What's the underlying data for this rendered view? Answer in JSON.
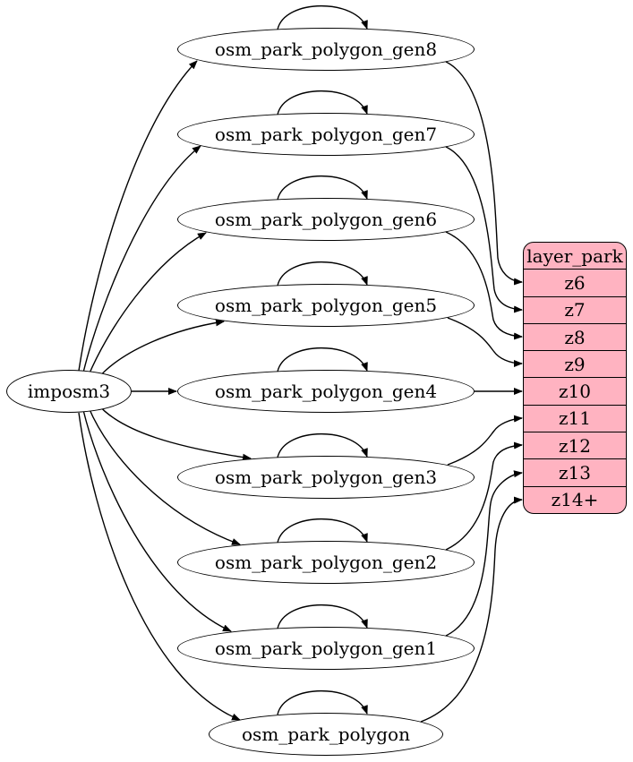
{
  "diagram": {
    "background_color": "#ffffff",
    "edge_color": "#000000",
    "node_fill_color": "#ffffff",
    "node_stroke_color": "#000000",
    "source": {
      "id": "imposm3",
      "label": "imposm3"
    },
    "generalized_tables": [
      {
        "id": "osm_park_polygon_gen8",
        "label": "osm_park_polygon_gen8",
        "target_row": "z6"
      },
      {
        "id": "osm_park_polygon_gen7",
        "label": "osm_park_polygon_gen7",
        "target_row": "z7"
      },
      {
        "id": "osm_park_polygon_gen6",
        "label": "osm_park_polygon_gen6",
        "target_row": "z8"
      },
      {
        "id": "osm_park_polygon_gen5",
        "label": "osm_park_polygon_gen5",
        "target_row": "z9"
      },
      {
        "id": "osm_park_polygon_gen4",
        "label": "osm_park_polygon_gen4",
        "target_row": "z10"
      },
      {
        "id": "osm_park_polygon_gen3",
        "label": "osm_park_polygon_gen3",
        "target_row": "z11"
      },
      {
        "id": "osm_park_polygon_gen2",
        "label": "osm_park_polygon_gen2",
        "target_row": "z12"
      },
      {
        "id": "osm_park_polygon_gen1",
        "label": "osm_park_polygon_gen1",
        "target_row": "z13"
      },
      {
        "id": "osm_park_polygon",
        "label": "osm_park_polygon",
        "target_row": "z14+"
      }
    ],
    "layer_table": {
      "title": "layer_park",
      "rows": [
        "z6",
        "z7",
        "z8",
        "z9",
        "z10",
        "z11",
        "z12",
        "z13",
        "z14+"
      ],
      "fill_color": "#ffb3c1",
      "border_color": "#000000"
    },
    "edges": {
      "from_source_to": [
        "osm_park_polygon_gen8",
        "osm_park_polygon_gen7",
        "osm_park_polygon_gen6",
        "osm_park_polygon_gen5",
        "osm_park_polygon_gen4",
        "osm_park_polygon_gen3",
        "osm_park_polygon_gen2",
        "osm_park_polygon_gen1",
        "osm_park_polygon"
      ],
      "self_loops_on": [
        "osm_park_polygon_gen8",
        "osm_park_polygon_gen7",
        "osm_park_polygon_gen6",
        "osm_park_polygon_gen5",
        "osm_park_polygon_gen4",
        "osm_park_polygon_gen3",
        "osm_park_polygon_gen2",
        "osm_park_polygon_gen1",
        "osm_park_polygon"
      ],
      "table_to_zoom_row": [
        {
          "from": "osm_park_polygon_gen8",
          "to": "z6"
        },
        {
          "from": "osm_park_polygon_gen7",
          "to": "z7"
        },
        {
          "from": "osm_park_polygon_gen6",
          "to": "z8"
        },
        {
          "from": "osm_park_polygon_gen5",
          "to": "z9"
        },
        {
          "from": "osm_park_polygon_gen4",
          "to": "z10"
        },
        {
          "from": "osm_park_polygon_gen3",
          "to": "z11"
        },
        {
          "from": "osm_park_polygon_gen2",
          "to": "z12"
        },
        {
          "from": "osm_park_polygon_gen1",
          "to": "z13"
        },
        {
          "from": "osm_park_polygon",
          "to": "z14+"
        }
      ]
    }
  }
}
